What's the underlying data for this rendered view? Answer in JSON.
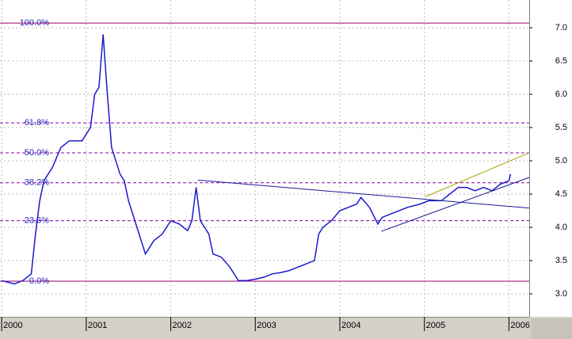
{
  "chart_data": {
    "type": "line",
    "x": [
      2000.0,
      2000.15,
      2000.25,
      2000.35,
      2000.4,
      2000.45,
      2000.5,
      2000.6,
      2000.7,
      2000.8,
      2000.95,
      2001.05,
      2001.1,
      2001.15,
      2001.2,
      2001.25,
      2001.3,
      2001.4,
      2001.45,
      2001.5,
      2001.6,
      2001.7,
      2001.8,
      2001.9,
      2002.0,
      2002.1,
      2002.15,
      2002.2,
      2002.25,
      2002.3,
      2002.35,
      2002.45,
      2002.5,
      2002.6,
      2002.7,
      2002.8,
      2002.9,
      2003.0,
      2003.1,
      2003.2,
      2003.3,
      2003.4,
      2003.5,
      2003.6,
      2003.7,
      2003.75,
      2003.8,
      2003.9,
      2004.0,
      2004.1,
      2004.2,
      2004.25,
      2004.35,
      2004.45,
      2004.5,
      2004.6,
      2004.7,
      2004.8,
      2004.95,
      2005.05,
      2005.2,
      2005.3,
      2005.4,
      2005.5,
      2005.6,
      2005.7,
      2005.8,
      2005.9,
      2006.0,
      2006.02
    ],
    "series": [
      {
        "color": "#1a1acc",
        "values": [
          3.2,
          3.15,
          3.2,
          3.3,
          3.9,
          4.4,
          4.7,
          4.9,
          5.2,
          5.3,
          5.3,
          5.5,
          6.0,
          6.1,
          6.9,
          6.0,
          5.2,
          4.8,
          4.7,
          4.4,
          4.0,
          3.6,
          3.8,
          3.9,
          4.1,
          4.05,
          4.0,
          3.95,
          4.1,
          4.6,
          4.1,
          3.9,
          3.6,
          3.55,
          3.4,
          3.2,
          3.2,
          3.22,
          3.25,
          3.3,
          3.32,
          3.35,
          3.4,
          3.45,
          3.5,
          3.9,
          4.0,
          4.1,
          4.25,
          4.3,
          4.35,
          4.45,
          4.3,
          4.05,
          4.15,
          4.2,
          4.25,
          4.3,
          4.35,
          4.4,
          4.4,
          4.5,
          4.6,
          4.6,
          4.55,
          4.6,
          4.55,
          4.65,
          4.7,
          4.8
        ]
      }
    ],
    "xlim": [
      1999.98,
      2006.24
    ],
    "xticks": [
      2000,
      2001,
      2002,
      2003,
      2004,
      2005,
      2006
    ],
    "ylim": [
      2.655,
      7.417
    ],
    "yticks": [
      {
        "value": 3,
        "label": "3.0"
      },
      3.5,
      {
        "value": 4,
        "label": "4.0"
      },
      4.5,
      {
        "value": 5,
        "label": "5.0"
      },
      5.5,
      {
        "value": 6,
        "label": "6.0"
      },
      6.5,
      {
        "value": 7,
        "label": "7.0"
      }
    ],
    "grid": true,
    "fib_levels": [
      {
        "value": 7.07,
        "label": "100.0%"
      },
      {
        "value": 5.57,
        "label": "61.8%"
      },
      {
        "value": 5.12,
        "label": "50.0%"
      },
      {
        "value": 4.67,
        "label": "38.2%"
      },
      {
        "value": 4.1,
        "label": "23.6%"
      },
      {
        "value": 3.19,
        "label": "0.0%"
      }
    ],
    "trendlines": [
      {
        "color": "#1a1a99",
        "x": [
          2002.32,
          2006.24
        ],
        "values": [
          4.71,
          4.29
        ]
      },
      {
        "color": "#1a1a99",
        "x": [
          2004.49,
          2006.24
        ],
        "values": [
          3.94,
          4.75
        ]
      },
      {
        "color": "#a6a600",
        "x": [
          2005.01,
          2006.24
        ],
        "values": [
          4.46,
          5.12
        ]
      }
    ]
  }
}
